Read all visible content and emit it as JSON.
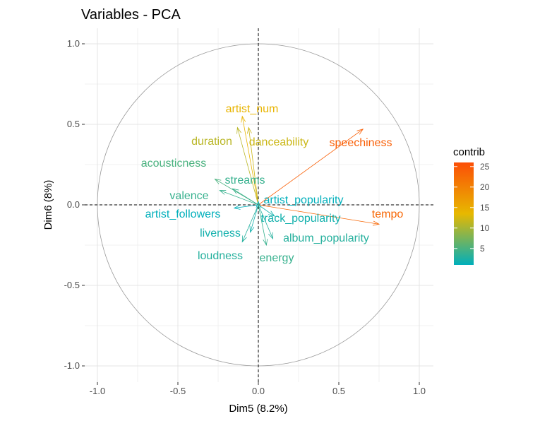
{
  "chart_data": {
    "type": "pca-variables",
    "title": "Variables - PCA",
    "xlabel": "Dim5 (8.2%)",
    "ylabel": "Dim6 (8%)",
    "xlim": [
      -1.0,
      1.0
    ],
    "ylim": [
      -1.0,
      1.0
    ],
    "x_ticks": [
      "-1.0",
      "-0.5",
      "0.0",
      "0.5",
      "1.0"
    ],
    "y_ticks": [
      "-1.0",
      "-0.5",
      "0.0",
      "0.5",
      "1.0"
    ],
    "grid": true,
    "unit_circle": true,
    "variables": [
      {
        "name": "speechiness",
        "x": 0.65,
        "y": 0.47,
        "contrib": 24
      },
      {
        "name": "tempo",
        "x": 0.75,
        "y": -0.12,
        "contrib": 23
      },
      {
        "name": "artist_num",
        "x": -0.1,
        "y": 0.55,
        "contrib": 14
      },
      {
        "name": "danceability",
        "x": -0.06,
        "y": 0.48,
        "contrib": 12
      },
      {
        "name": "duration",
        "x": -0.13,
        "y": 0.48,
        "contrib": 11
      },
      {
        "name": "acousticness",
        "x": -0.27,
        "y": 0.16,
        "contrib": 5
      },
      {
        "name": "streams",
        "x": -0.16,
        "y": 0.1,
        "contrib": 4
      },
      {
        "name": "valence",
        "x": -0.24,
        "y": 0.09,
        "contrib": 4
      },
      {
        "name": "artist_popularity",
        "x": 0.0,
        "y": 0.02,
        "contrib": 1
      },
      {
        "name": "artist_followers",
        "x": -0.15,
        "y": -0.02,
        "contrib": 1
      },
      {
        "name": "track_popularity",
        "x": 0.1,
        "y": -0.07,
        "contrib": 2
      },
      {
        "name": "liveness",
        "x": -0.05,
        "y": -0.17,
        "contrib": 2
      },
      {
        "name": "album_popularity",
        "x": 0.09,
        "y": -0.21,
        "contrib": 3
      },
      {
        "name": "loudness",
        "x": -0.1,
        "y": -0.23,
        "contrib": 3
      },
      {
        "name": "energy",
        "x": 0.05,
        "y": -0.25,
        "contrib": 4
      }
    ],
    "legend": {
      "title": "contrib",
      "position": "right",
      "min": 1,
      "max": 26,
      "ticks": [
        "5",
        "10",
        "15",
        "20",
        "25"
      ],
      "colors": [
        "#00AFBB",
        "#E7B800",
        "#FC4E07"
      ]
    }
  }
}
